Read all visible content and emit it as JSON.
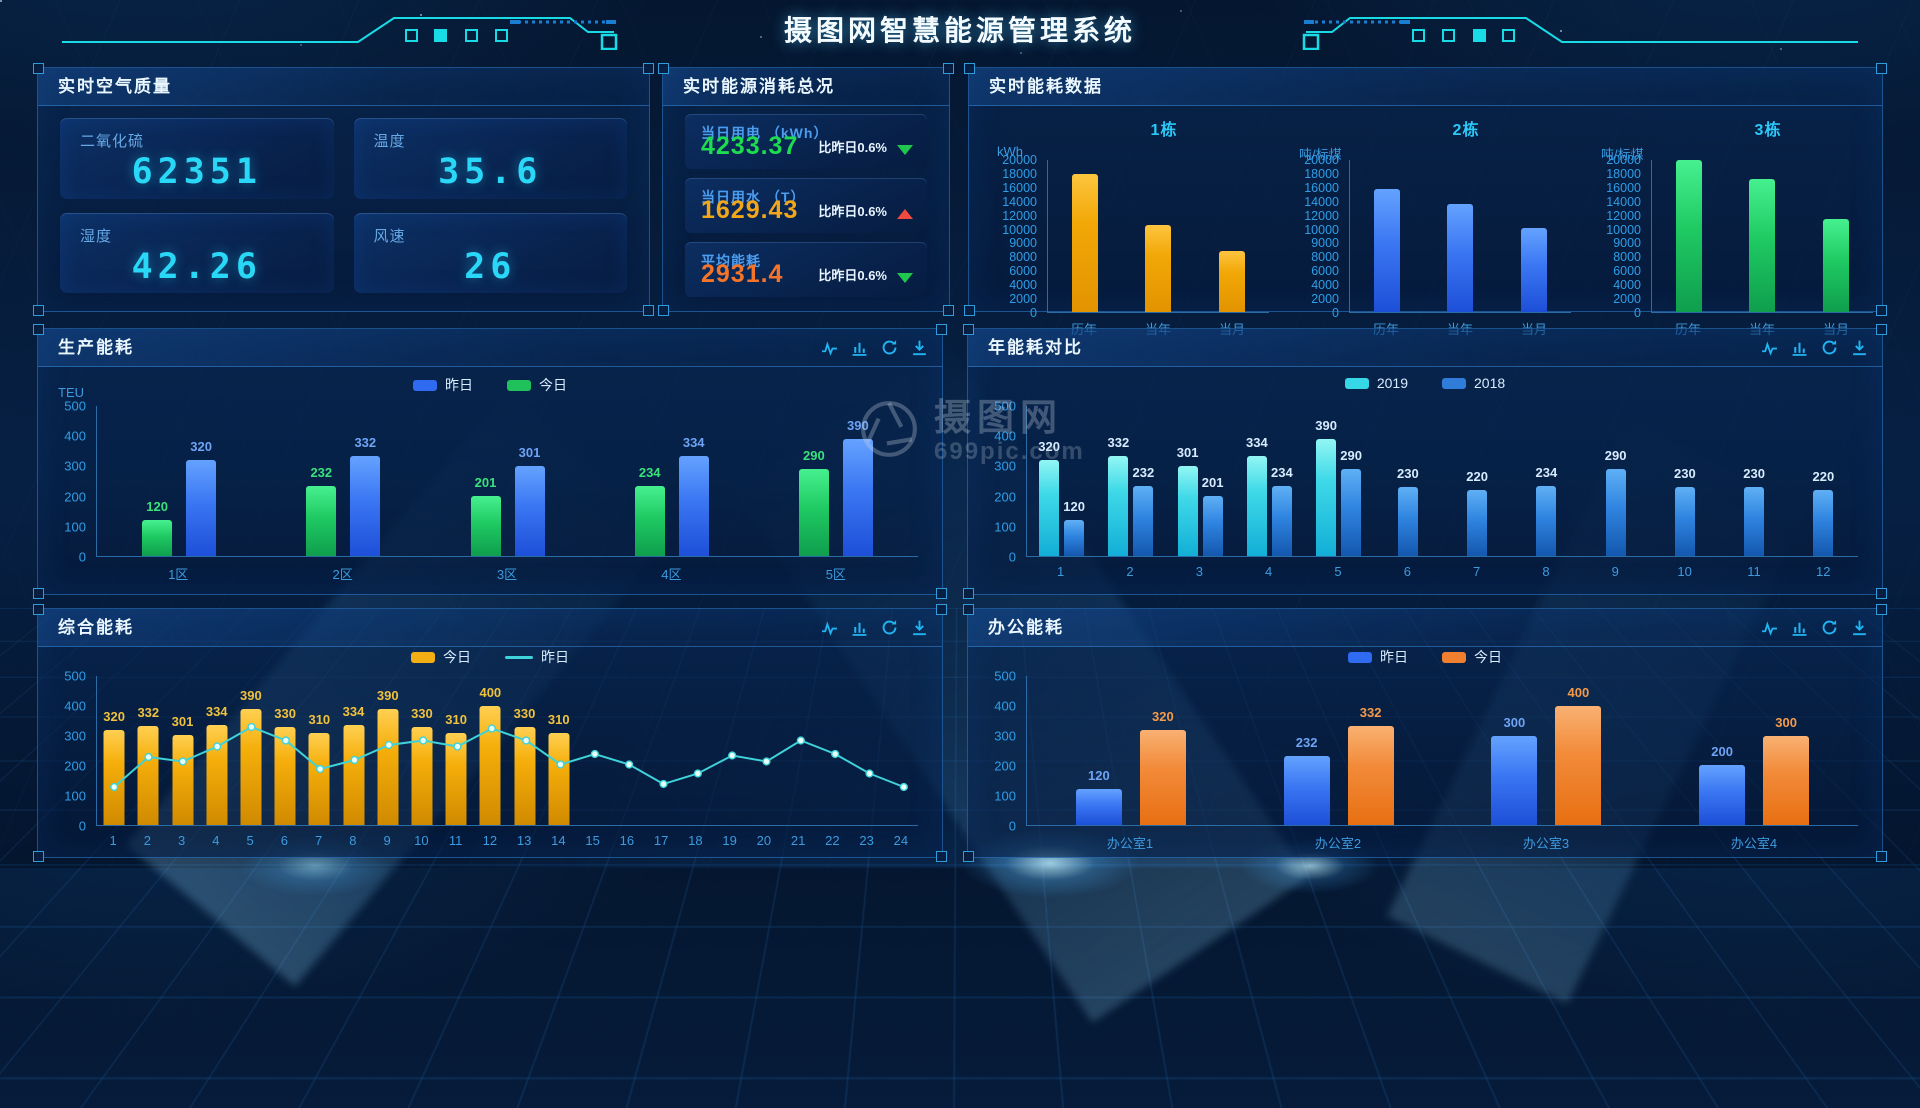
{
  "header": {
    "title": "摄图网智慧能源管理系统"
  },
  "watermark": {
    "brand": "摄图网",
    "site": "699pic.com"
  },
  "toolbar_icons": [
    "pulse-chart",
    "bar-chart",
    "refresh",
    "download"
  ],
  "panels": {
    "air": {
      "title": "实时空气质量",
      "cards": [
        {
          "label": "二氧化硫",
          "value": "62351"
        },
        {
          "label": "温度",
          "value": "35.6"
        },
        {
          "label": "湿度",
          "value": "42.26"
        },
        {
          "label": "风速",
          "value": "26"
        }
      ]
    },
    "overview": {
      "title": "实时能源消耗总况",
      "items": [
        {
          "label": "当日用电 （kWh）",
          "value": "4233.37",
          "value_color": "#1ddc4f",
          "compare": "比昨日0.6%",
          "trend": "down",
          "trend_color": "#1ec84d"
        },
        {
          "label": "当日用水 （T）",
          "value": "1629.43",
          "value_color": "#f2a71b",
          "compare": "比昨日0.6%",
          "trend": "up",
          "trend_color": "#f04a3e"
        },
        {
          "label": "平均能耗",
          "value": "2931.4",
          "value_color": "#f4752a",
          "compare": "比昨日0.6%",
          "trend": "down",
          "trend_color": "#1ec84d"
        }
      ]
    },
    "realtime": {
      "title": "实时能耗数据"
    },
    "production": {
      "title": "生产能耗",
      "unit": "TEU",
      "legend": [
        {
          "label": "昨日",
          "color": "#2f6bf0",
          "type": "bar"
        },
        {
          "label": "今日",
          "color": "#1fc25a",
          "type": "bar"
        }
      ]
    },
    "yearly": {
      "title": "年能耗对比",
      "legend": [
        {
          "label": "2019",
          "color": "#36d8e8",
          "type": "bar"
        },
        {
          "label": "2018",
          "color": "#2f7dd8",
          "type": "bar"
        }
      ]
    },
    "comprehensive": {
      "title": "综合能耗",
      "legend": [
        {
          "label": "今日",
          "color": "#f2ae12",
          "type": "bar"
        },
        {
          "label": "昨日",
          "color": "#3fd2d8",
          "type": "line"
        }
      ]
    },
    "office": {
      "title": "办公能耗",
      "legend": [
        {
          "label": "昨日",
          "color": "#2f6bf0",
          "type": "bar"
        },
        {
          "label": "今日",
          "color": "#f08030",
          "type": "bar"
        }
      ]
    }
  },
  "chart_data": [
    {
      "id": "building1",
      "type": "bar",
      "title": "1栋",
      "ylabel": "kWh",
      "categories": [
        "历年",
        "当年",
        "当月"
      ],
      "values": [
        18000,
        10600,
        8400
      ],
      "yticks": [
        0,
        2000,
        4000,
        6000,
        8000,
        9000,
        10000,
        12000,
        14000,
        16000,
        18000,
        20000
      ],
      "bar_style": "bar-orange"
    },
    {
      "id": "building2",
      "type": "bar",
      "title": "2栋",
      "ylabel": "吨/标煤",
      "categories": [
        "历年",
        "当年",
        "当月"
      ],
      "values": [
        15800,
        13600,
        10200
      ],
      "yticks": [
        0,
        2000,
        4000,
        6000,
        8000,
        9000,
        10000,
        12000,
        14000,
        16000,
        18000,
        20000
      ],
      "bar_style": "bar-blue"
    },
    {
      "id": "building3",
      "type": "bar",
      "title": "3栋",
      "ylabel": "吨/标煤",
      "categories": [
        "历年",
        "当年",
        "当月"
      ],
      "values": [
        20000,
        17200,
        11500
      ],
      "yticks": [
        0,
        2000,
        4000,
        6000,
        8000,
        9000,
        10000,
        12000,
        14000,
        16000,
        18000,
        20000
      ],
      "bar_style": "bar-green"
    },
    {
      "id": "production",
      "type": "bar",
      "title": "生产能耗",
      "ylabel": "TEU",
      "categories": [
        "1区",
        "2区",
        "3区",
        "4区",
        "5区"
      ],
      "series": [
        {
          "name": "今日",
          "values": [
            120,
            232,
            201,
            234,
            290
          ],
          "bar_style": "bar-green",
          "label_color": "#39e27d"
        },
        {
          "name": "昨日",
          "values": [
            320,
            332,
            301,
            334,
            390
          ],
          "bar_style": "bar-blue",
          "label_color": "#6ea3f5"
        }
      ],
      "ylim": [
        0,
        500
      ],
      "yticks": [
        500,
        400,
        300,
        200,
        100,
        0
      ]
    },
    {
      "id": "yearly",
      "type": "bar",
      "title": "年能耗对比",
      "categories": [
        "1",
        "2",
        "3",
        "4",
        "5",
        "6",
        "7",
        "8",
        "9",
        "10",
        "11",
        "12"
      ],
      "series": [
        {
          "name": "2019",
          "values": [
            320,
            332,
            301,
            334,
            390,
            null,
            null,
            null,
            null,
            null,
            null,
            null
          ],
          "bar_style": "bar-cyan",
          "label_color": "#d8ecff"
        },
        {
          "name": "2018",
          "values": [
            120,
            232,
            201,
            234,
            290,
            230,
            220,
            234,
            290,
            230,
            230,
            220
          ],
          "bar_style": "bar-sky",
          "label_color": "#d8ecff"
        }
      ],
      "ylim": [
        0,
        500
      ],
      "yticks": [
        500,
        400,
        300,
        200,
        100,
        0
      ]
    },
    {
      "id": "comprehensive",
      "type": "bar+line",
      "title": "综合能耗",
      "categories": [
        "1",
        "2",
        "3",
        "4",
        "5",
        "6",
        "7",
        "8",
        "9",
        "10",
        "11",
        "12",
        "13",
        "14",
        "15",
        "16",
        "17",
        "18",
        "19",
        "20",
        "21",
        "22",
        "23",
        "24"
      ],
      "bar_series": {
        "name": "今日",
        "values": [
          320,
          332,
          301,
          334,
          390,
          330,
          310,
          334,
          390,
          330,
          310,
          400,
          330,
          310
        ],
        "bar_style": "bar-amber",
        "label_color": "#f0c23d"
      },
      "line_series": {
        "name": "昨日",
        "values": [
          130,
          230,
          215,
          265,
          330,
          285,
          190,
          220,
          270,
          285,
          265,
          325,
          285,
          205,
          240,
          205,
          140,
          175,
          235,
          215,
          285,
          240,
          175,
          130
        ],
        "color": "#3fd2d8"
      },
      "ylim": [
        0,
        500
      ],
      "yticks": [
        500,
        400,
        300,
        200,
        100,
        0
      ]
    },
    {
      "id": "office",
      "type": "bar",
      "title": "办公能耗",
      "categories": [
        "办公室1",
        "办公室2",
        "办公室3",
        "办公室4"
      ],
      "series": [
        {
          "name": "昨日",
          "values": [
            120,
            232,
            300,
            200
          ],
          "bar_style": "bar-blue",
          "label_color": "#6ea3f5"
        },
        {
          "name": "今日",
          "values": [
            320,
            332,
            400,
            300
          ],
          "bar_style": "bar-tangerine",
          "label_color": "#f59a4a"
        }
      ],
      "ylim": [
        0,
        500
      ],
      "yticks": [
        500,
        400,
        300,
        200,
        100,
        0
      ]
    }
  ]
}
